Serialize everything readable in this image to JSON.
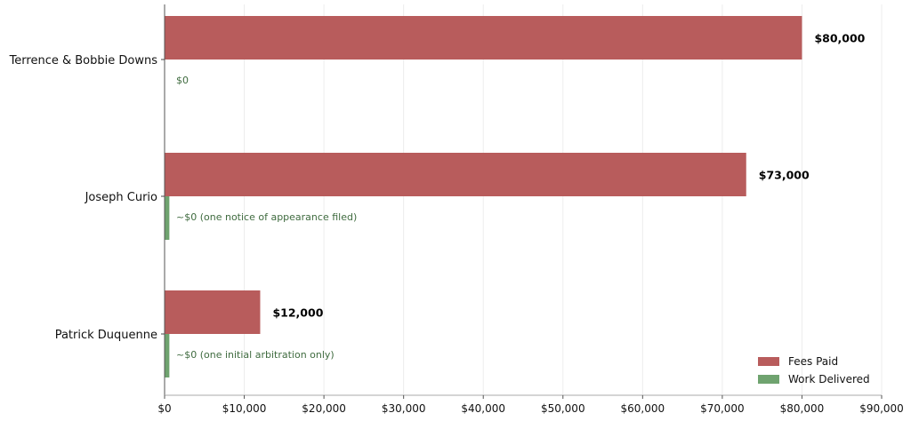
{
  "chart_data": {
    "type": "bar",
    "orientation": "horizontal",
    "title": "",
    "xlabel": "",
    "ylabel": "",
    "xlim": [
      0,
      90000
    ],
    "x_ticks": [
      0,
      10000,
      20000,
      30000,
      40000,
      50000,
      60000,
      70000,
      80000,
      90000
    ],
    "x_tick_labels": [
      "$0",
      "$10,000",
      "$20,000",
      "$30,000",
      "$40,000",
      "$50,000",
      "$60,000",
      "$70,000",
      "$80,000",
      "$90,000"
    ],
    "grid": true,
    "legend_position": "bottom-right",
    "categories": [
      "Terrence & Bobbie Downs",
      "Joseph Curio",
      "Patrick Duquenne"
    ],
    "series": [
      {
        "name": "Fees Paid",
        "color": "#b85c5c",
        "values": [
          80000,
          73000,
          12000
        ],
        "labels": [
          "$80,000",
          "$73,000",
          "$12,000"
        ]
      },
      {
        "name": "Work Delivered",
        "color": "#6fa36f",
        "values": [
          0,
          600,
          600
        ],
        "labels": [
          "$0",
          "~$0  (one notice of appearance filed)",
          "~$0  (one initial arbitration only)"
        ]
      }
    ]
  }
}
